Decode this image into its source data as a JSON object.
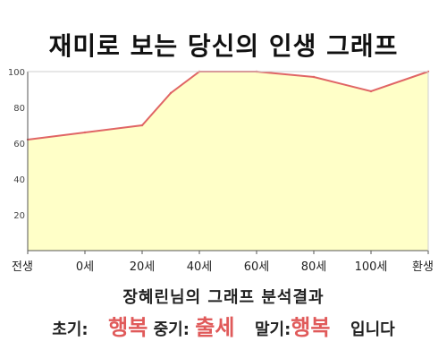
{
  "chart_data": {
    "type": "area",
    "title": "재미로 보는 당신의 인생 그래프",
    "x_tick_labels": [
      "전생",
      "0세",
      "20세",
      "40세",
      "60세",
      "80세",
      "100세",
      "환생"
    ],
    "y_ticks": [
      20,
      40,
      60,
      80,
      100
    ],
    "ylim": [
      0,
      100
    ],
    "grid": false,
    "series": [
      {
        "color": "#e06565",
        "fill": "#ffffc8",
        "points": [
          {
            "x": "전생",
            "y": 62
          },
          {
            "x": "0세",
            "y": 66
          },
          {
            "x": "20세",
            "y": 70
          },
          {
            "x": "30세",
            "y": 88
          },
          {
            "x": "40세",
            "y": 100
          },
          {
            "x": "60세",
            "y": 100
          },
          {
            "x": "80세",
            "y": 97
          },
          {
            "x": "100세",
            "y": 89
          },
          {
            "x": "환생",
            "y": 100
          }
        ]
      }
    ]
  },
  "result": {
    "heading": "장혜린님의 그래프 분석결과",
    "early_label": "초기:",
    "early_value": "행복",
    "mid_label": "중기:",
    "mid_value": "출세",
    "late_label": "말기:",
    "late_value": "행복",
    "ending": "입니다"
  }
}
